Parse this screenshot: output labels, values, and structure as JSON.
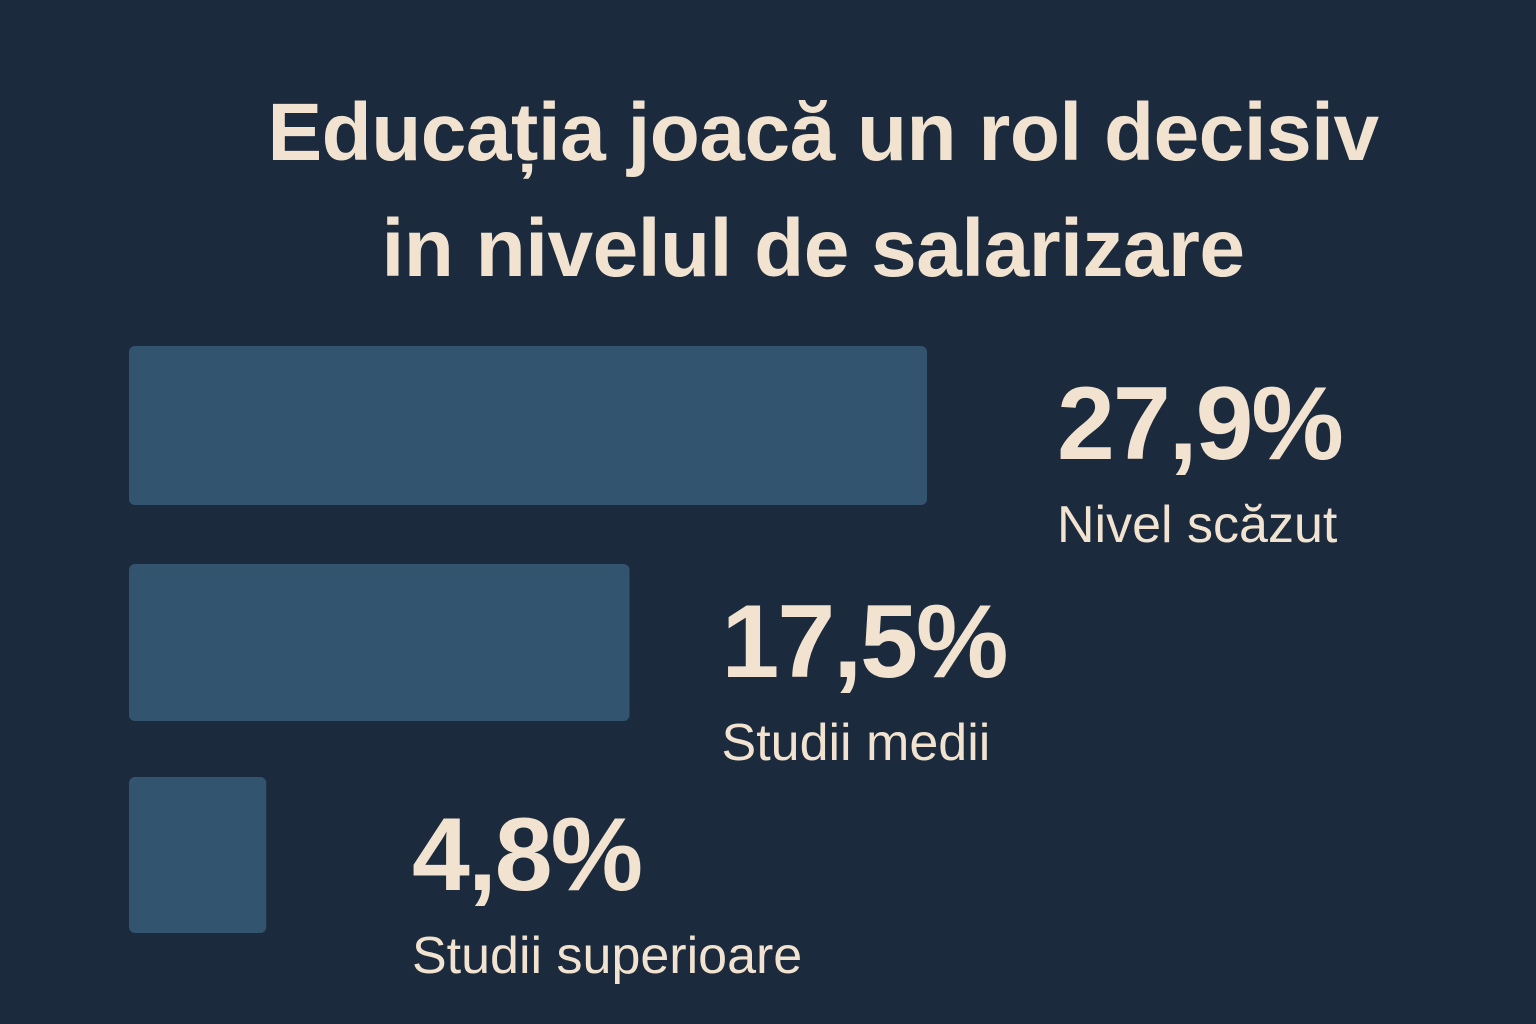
{
  "colors": {
    "background": "#1b2a3d",
    "bar": "#33546f",
    "text": "#f1e3cf"
  },
  "chart_data": {
    "type": "bar",
    "orientation": "horizontal",
    "title": "Educația joacă un rol decisiv in nivelul de salarizare",
    "title_lines": [
      "Educația joacă un rol decisiv",
      "in nivelul de salarizare"
    ],
    "categories": [
      "Nivel scăzut",
      "Studii medii",
      "Studii superioare"
    ],
    "values": [
      27.9,
      17.5,
      4.8
    ],
    "value_labels": [
      "27,9%",
      "17,5%",
      "4,8%"
    ],
    "unit": "%",
    "axis_visible": false,
    "grid": false,
    "legend": "none"
  }
}
